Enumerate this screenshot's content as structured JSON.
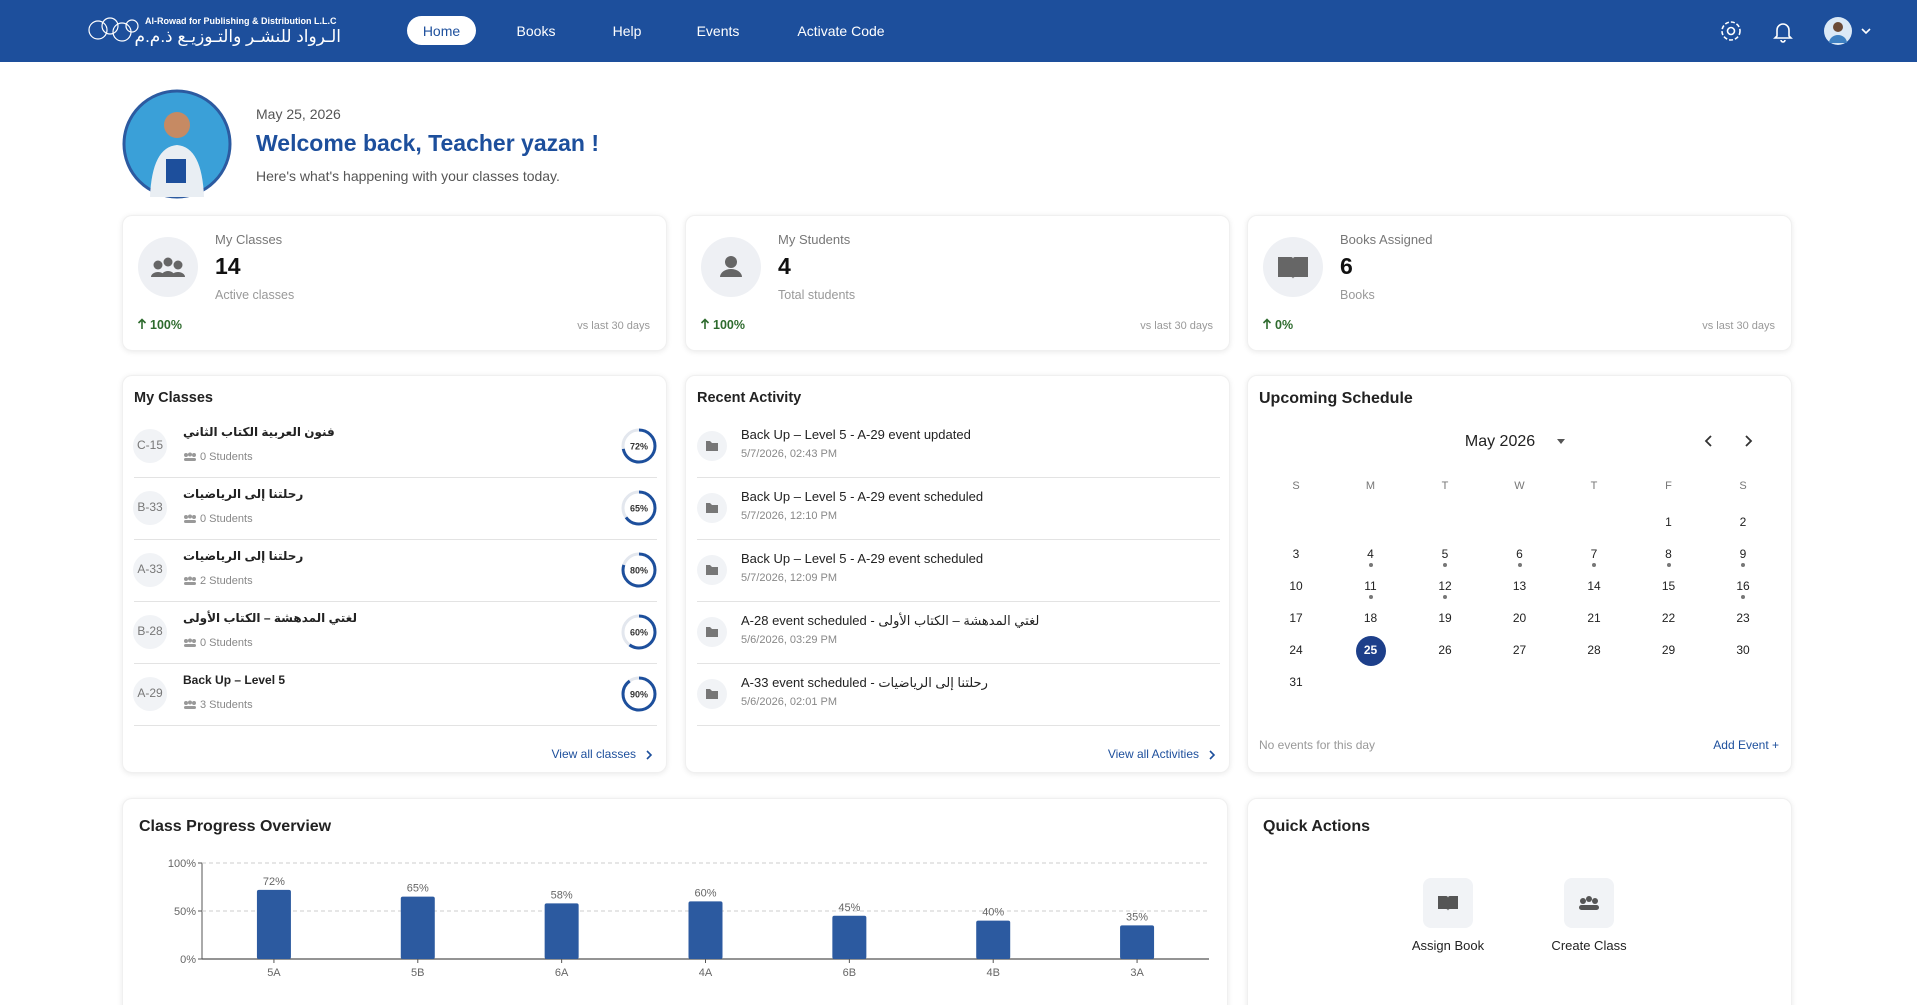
{
  "nav": {
    "logo_en": "Al-Rowad for Publishing & Distribution L.L.C",
    "logo_ar": "الـرواد للنشـر والتـوزيـع ذ.م.م",
    "links": [
      "Home",
      "Books",
      "Help",
      "Events",
      "Activate Code"
    ]
  },
  "welcome": {
    "date": "May 25, 2026",
    "title": "Welcome back, Teacher yazan !",
    "subtitle": "Here's what's happening with your classes today."
  },
  "stats": [
    {
      "label": "My Classes",
      "value": 14,
      "caption": "Active classes",
      "change": "100%",
      "period": "vs last 30 days"
    },
    {
      "label": "My Students",
      "value": 4,
      "caption": "Total students",
      "change": "100%",
      "period": "vs last 30 days"
    },
    {
      "label": "Books Assigned",
      "value": 6,
      "caption": "Books",
      "change": "0%",
      "period": "vs last 30 days"
    }
  ],
  "my_classes": {
    "title": "My Classes",
    "link": "View all classes",
    "items": [
      {
        "code": "C-15",
        "name": "فنون العربية الكتاب الثاني",
        "students": "0 Students",
        "progress": 72,
        "progress_label": "72%"
      },
      {
        "code": "B-33",
        "name": "رحلتنا إلى الرياضيات",
        "students": "0 Students",
        "progress": 65,
        "progress_label": "65%"
      },
      {
        "code": "A-33",
        "name": "رحلتنا إلى الرياضيات",
        "students": "2 Students",
        "progress": 80,
        "progress_label": "80%"
      },
      {
        "code": "B-28",
        "name": "لغتي المدهشة – الكتاب الأولى",
        "students": "0 Students",
        "progress": 60,
        "progress_label": "60%"
      },
      {
        "code": "A-29",
        "name": "Back Up – Level 5",
        "students": "3 Students",
        "progress": 90,
        "progress_label": "90%"
      }
    ]
  },
  "recent_activity": {
    "title": "Recent Activity",
    "link": "View all Activities",
    "items": [
      {
        "title": "Back Up – Level 5 - A-29 event updated",
        "time": "5/7/2026, 02:43 PM"
      },
      {
        "title": "Back Up – Level 5 - A-29 event scheduled",
        "time": "5/7/2026, 12:10 PM"
      },
      {
        "title": "Back Up – Level 5 - A-29 event scheduled",
        "time": "5/7/2026, 12:09 PM"
      },
      {
        "title": "لغتي المدهشة – الكتاب الأولى - A-28 event scheduled",
        "time": "5/6/2026, 03:29 PM"
      },
      {
        "title": "رحلتنا إلى الرياضيات - A-33 event scheduled",
        "time": "5/6/2026, 02:01 PM"
      }
    ]
  },
  "schedule": {
    "title": "Upcoming Schedule",
    "month": "May 2026",
    "weekdays": [
      "S",
      "M",
      "T",
      "W",
      "T",
      "F",
      "S"
    ],
    "days": [
      1,
      2,
      3,
      4,
      5,
      6,
      7,
      8,
      9,
      10,
      11,
      12,
      13,
      14,
      15,
      16,
      17,
      18,
      19,
      20,
      21,
      22,
      23,
      24,
      25,
      26,
      27,
      28,
      29,
      30,
      31
    ],
    "empty": "No events for this day",
    "add": "Add Event +"
  },
  "progress_chart": {
    "type": "bar",
    "title": "Class Progress Overview",
    "categories": [
      "5A",
      "5B",
      "6A",
      "4A",
      "6B",
      "4B",
      "3A"
    ],
    "values": [
      72,
      65,
      58,
      60,
      45,
      40,
      35
    ],
    "value_labels": [
      "72%",
      "65%",
      "58%",
      "60%",
      "45%",
      "40%",
      "35%"
    ],
    "color": "#2c5aa0",
    "ylim": [
      0,
      100
    ],
    "yticks": [
      {
        "value": 0,
        "label": "0%"
      },
      {
        "value": 50,
        "label": "50%"
      },
      {
        "value": 100,
        "label": "100%"
      }
    ],
    "grid": true
  },
  "quick_actions": {
    "title": "Quick Actions",
    "items": [
      "Assign Book",
      "Create Class"
    ]
  }
}
